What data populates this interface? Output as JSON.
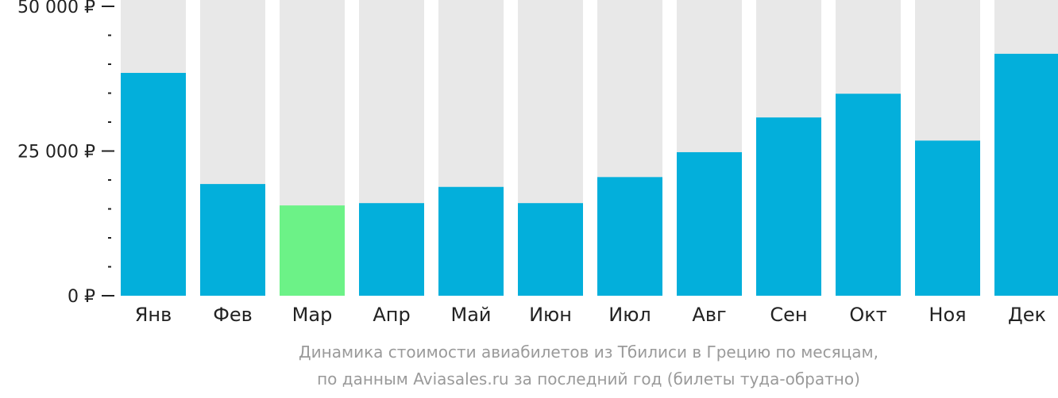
{
  "chart_data": {
    "type": "bar",
    "categories": [
      "Янв",
      "Фев",
      "Мар",
      "Апр",
      "Май",
      "Июн",
      "Июл",
      "Авг",
      "Сен",
      "Окт",
      "Ноя",
      "Дек"
    ],
    "values": [
      38500,
      19300,
      15600,
      16000,
      18800,
      16000,
      20500,
      24800,
      30800,
      34900,
      26800,
      41800
    ],
    "highlight_index": 2,
    "ylim": [
      0,
      50000
    ],
    "yticks": [
      {
        "value": 0,
        "label": "0 ₽"
      },
      {
        "value": 25000,
        "label": "25 000 ₽"
      },
      {
        "value": 50000,
        "label": "50 000 ₽"
      }
    ],
    "minor_tick_step": 5000,
    "colors": {
      "bar": "#03afdb",
      "highlight": "#6cf287",
      "background_bar": "#e8e8e8",
      "axis": "#222222"
    }
  },
  "caption": {
    "line1": "Динамика стоимости авиабилетов из Тбилиси в Грецию по месяцам,",
    "line2": "по данным Aviasales.ru за последний год (билеты туда-обратно)"
  }
}
